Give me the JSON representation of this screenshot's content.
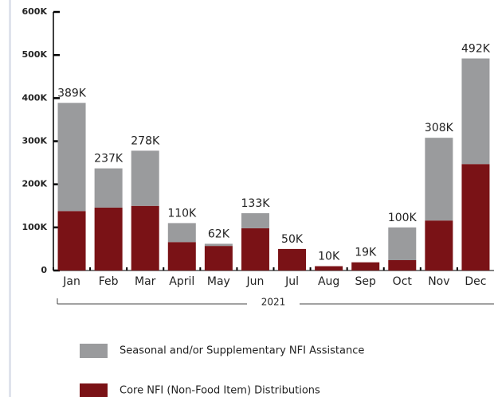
{
  "chart_data": {
    "type": "stacked_bar",
    "categories": [
      "Jan",
      "Feb",
      "Mar",
      "April",
      "May",
      "Jun",
      "Jul",
      "Aug",
      "Sep",
      "Oct",
      "Nov",
      "Dec"
    ],
    "series": [
      {
        "name": "Core NFI (Non-Food Item) Distributions",
        "color": "#7a1216",
        "values": [
          138000,
          146000,
          150000,
          66000,
          57000,
          98000,
          50000,
          10000,
          19000,
          24000,
          116000,
          247000
        ]
      },
      {
        "name": "Seasonal and/or Supplementary NFI Assistance",
        "color": "#9a9b9d",
        "values": [
          251000,
          91000,
          128000,
          44000,
          5000,
          35000,
          0,
          0,
          0,
          76000,
          192000,
          245000
        ]
      }
    ],
    "totals": [
      389000,
      237000,
      278000,
      110000,
      62000,
      133000,
      50000,
      10000,
      19000,
      100000,
      308000,
      492000
    ],
    "total_labels": [
      "389K",
      "237K",
      "278K",
      "110K",
      "62K",
      "133K",
      "50K",
      "10K",
      "19K",
      "100K",
      "308K",
      "492K"
    ],
    "x_group_label": "2021",
    "ylim": [
      0,
      600000
    ],
    "yticks": [
      0,
      {
        "value": 100000,
        "label": "100K"
      },
      {
        "value": 200000,
        "label": "200K"
      },
      {
        "value": 300000,
        "label": "300K"
      },
      {
        "value": 400000,
        "label": "400K"
      },
      {
        "value": 500000,
        "label": "500K"
      },
      {
        "value": 600000,
        "label": "600K"
      }
    ]
  }
}
